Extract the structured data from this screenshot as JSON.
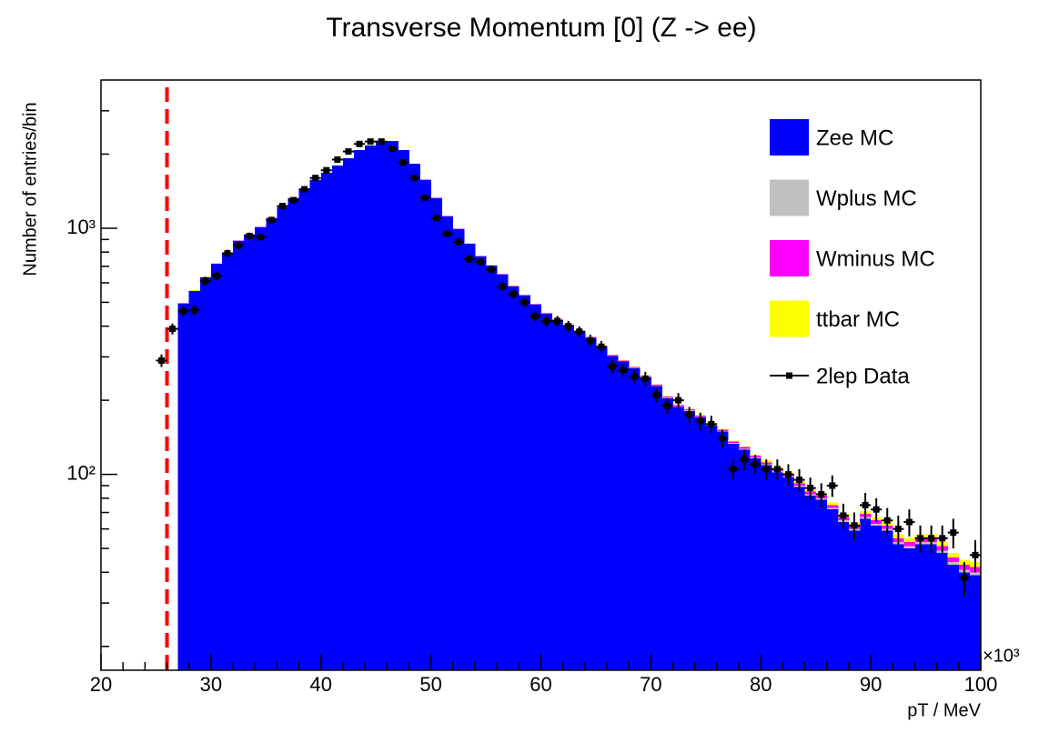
{
  "chart_data": {
    "type": "stacked_histogram",
    "title": "Transverse Momentum [0] (Z -> ee)",
    "y_label": "Number of entries/bin",
    "x_label": "pT / MeV",
    "x_multiplier": "×10³",
    "log_y": true,
    "legend_position": "top-right",
    "xlim": [
      20,
      100
    ],
    "xticks": [
      20,
      30,
      40,
      50,
      60,
      70,
      80,
      90,
      100
    ],
    "xminor": [
      22,
      24,
      26,
      28,
      32,
      34,
      36,
      38,
      42,
      44,
      46,
      48,
      52,
      54,
      56,
      58,
      62,
      64,
      66,
      68,
      72,
      74,
      76,
      78,
      82,
      84,
      86,
      88,
      92,
      94,
      96,
      98
    ],
    "ylim": [
      16,
      4000
    ],
    "yticks": [
      {
        "value": 100,
        "label": "10²"
      },
      {
        "value": 1000,
        "label": "10³"
      }
    ],
    "yminor": [
      20,
      30,
      40,
      50,
      60,
      70,
      80,
      90,
      200,
      300,
      400,
      500,
      600,
      700,
      800,
      900,
      2000,
      3000
    ],
    "cut_x": 26,
    "cut_color": "#ff0000",
    "bins": [
      27,
      28,
      29,
      30,
      31,
      32,
      33,
      34,
      35,
      36,
      37,
      38,
      39,
      40,
      41,
      42,
      43,
      44,
      45,
      46,
      47,
      48,
      49,
      50,
      51,
      52,
      53,
      54,
      55,
      56,
      57,
      58,
      59,
      60,
      61,
      62,
      63,
      64,
      65,
      66,
      67,
      68,
      69,
      70,
      71,
      72,
      73,
      74,
      75,
      76,
      77,
      78,
      79,
      80,
      81,
      82,
      83,
      84,
      85,
      86,
      87,
      88,
      89,
      90,
      91,
      92,
      93,
      94,
      95,
      96,
      97,
      98,
      99,
      100
    ],
    "series": [
      {
        "name": "Zee MC",
        "color": "#0000ff",
        "values": [
          494,
          556,
          632,
          718,
          795,
          888,
          942,
          1008,
          1098,
          1216,
          1324,
          1440,
          1570,
          1680,
          1796,
          1923,
          2075,
          2166,
          2260,
          2260,
          2075,
          1829,
          1570,
          1324,
          1117,
          992,
          866,
          768,
          706,
          649,
          580,
          533,
          490,
          450,
          424,
          403,
          380,
          358,
          329,
          302,
          287,
          270,
          248,
          228,
          204,
          188,
          181,
          170,
          158,
          149,
          133,
          126,
          116,
          109,
          102,
          97,
          89,
          82,
          79,
          72,
          64,
          59,
          66,
          62,
          59,
          52,
          50,
          52,
          52,
          48,
          43,
          40,
          39
        ]
      },
      {
        "name": "Wplus MC",
        "color": "#c0c0c0",
        "values": [
          1,
          1,
          1,
          1,
          1,
          1,
          1,
          1,
          1,
          1,
          1,
          1,
          1,
          1,
          1,
          1,
          1,
          1,
          1,
          1,
          1,
          1,
          1,
          1,
          1,
          1,
          1,
          1,
          1,
          1,
          1,
          1,
          1,
          1,
          1,
          1,
          1,
          1,
          1,
          1,
          1,
          1,
          1,
          1,
          1,
          1,
          1,
          1,
          1,
          1,
          1,
          1,
          1,
          1,
          1,
          1,
          1,
          1,
          1,
          1,
          1,
          1,
          1,
          1,
          1,
          1,
          1,
          1,
          1,
          1,
          1,
          1,
          1
        ]
      },
      {
        "name": "Wminus MC",
        "color": "#ff00ff",
        "values": [
          2,
          2,
          2,
          2,
          2,
          2,
          2,
          2,
          2,
          2,
          2,
          2,
          2,
          2,
          2,
          2,
          2,
          2,
          2,
          2,
          2,
          2,
          2,
          2,
          2,
          2,
          2,
          2,
          2,
          2,
          2,
          2,
          2,
          2,
          2,
          2,
          2,
          2,
          2,
          2,
          2,
          2,
          2,
          2,
          2,
          2,
          2,
          2,
          2,
          2,
          2,
          2,
          2,
          2,
          2,
          2,
          2,
          2,
          2,
          2,
          2,
          2,
          2,
          2,
          2,
          2,
          2,
          2,
          2,
          2,
          2,
          2,
          2
        ]
      },
      {
        "name": "ttbar MC",
        "color": "#ffff00",
        "values": [
          0.5,
          0.5,
          0.5,
          0.5,
          0.5,
          0.5,
          0.5,
          0.5,
          0.5,
          0.5,
          0.5,
          0.5,
          0.5,
          0.5,
          0.5,
          0.5,
          0.5,
          0.5,
          0.5,
          0.5,
          0.5,
          0.5,
          0.5,
          0.5,
          0.5,
          0.5,
          0.5,
          0.5,
          0.5,
          0.5,
          1,
          1,
          1,
          1,
          1,
          1,
          1,
          1,
          1,
          1,
          1,
          1,
          1,
          1,
          1,
          1,
          1,
          1,
          1,
          1,
          1,
          1,
          1,
          2,
          2,
          2,
          2,
          2,
          2,
          2,
          2,
          2,
          2,
          2,
          2,
          2,
          2,
          2,
          2,
          2,
          2,
          2,
          2
        ]
      }
    ],
    "data": {
      "name": "2lep Data",
      "color": "#000000",
      "x": [
        25.5,
        26.5,
        27.5,
        28.5,
        29.5,
        30.5,
        31.5,
        32.5,
        33.5,
        34.5,
        35.5,
        36.5,
        37.5,
        38.5,
        39.5,
        40.5,
        41.5,
        42.5,
        43.5,
        44.5,
        45.5,
        46.5,
        47.5,
        48.5,
        49.5,
        50.5,
        51.5,
        52.5,
        53.5,
        54.5,
        55.5,
        56.5,
        57.5,
        58.5,
        59.5,
        60.5,
        61.5,
        62.5,
        63.5,
        64.5,
        65.5,
        66.5,
        67.5,
        68.5,
        69.5,
        70.5,
        71.5,
        72.5,
        73.5,
        74.5,
        75.5,
        76.5,
        77.5,
        78.5,
        79.5,
        80.5,
        81.5,
        82.5,
        83.5,
        84.5,
        85.5,
        86.5,
        87.5,
        88.5,
        89.5,
        90.5,
        91.5,
        92.5,
        93.5,
        94.5,
        95.5,
        96.5,
        97.5,
        98.5,
        99.5
      ],
      "values": [
        290,
        390,
        460,
        465,
        610,
        640,
        790,
        850,
        930,
        920,
        1080,
        1230,
        1300,
        1440,
        1600,
        1720,
        1900,
        2050,
        2200,
        2250,
        2250,
        2100,
        1850,
        1600,
        1330,
        1100,
        950,
        880,
        750,
        730,
        680,
        580,
        540,
        500,
        440,
        420,
        420,
        400,
        380,
        350,
        330,
        275,
        265,
        250,
        245,
        210,
        190,
        200,
        175,
        165,
        160,
        140,
        105,
        115,
        110,
        105,
        105,
        100,
        95,
        88,
        83,
        90,
        68,
        62,
        75,
        72,
        65,
        60,
        64,
        55,
        55,
        55,
        58,
        38,
        47
      ],
      "errors": [
        17,
        20,
        21,
        22,
        25,
        25,
        28,
        29,
        30,
        30,
        33,
        35,
        36,
        38,
        40,
        41,
        44,
        45,
        47,
        47,
        47,
        46,
        43,
        40,
        36,
        33,
        31,
        30,
        27,
        27,
        26,
        24,
        23,
        22,
        21,
        20,
        20,
        20,
        19,
        19,
        18,
        17,
        16,
        16,
        16,
        14,
        14,
        14,
        13,
        13,
        13,
        12,
        10,
        11,
        10,
        10,
        10,
        10,
        10,
        9,
        9,
        9,
        8,
        8,
        9,
        8,
        8,
        8,
        8,
        7,
        7,
        7,
        8,
        6,
        7
      ]
    }
  }
}
